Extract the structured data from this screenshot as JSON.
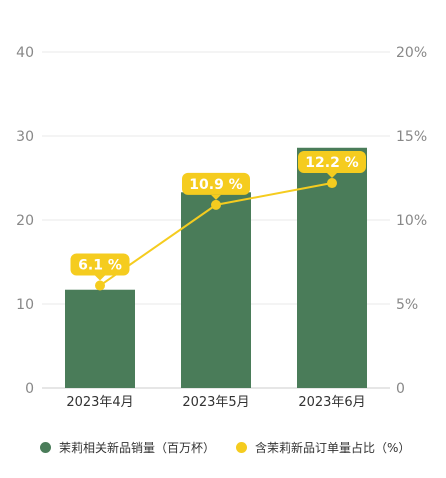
{
  "chart_data": {
    "type": "bar+line",
    "categories": [
      "2023年4月",
      "2023年5月",
      "2023年6月"
    ],
    "series": [
      {
        "name": "茉莉相关新品销量（百万杯）",
        "type": "bar",
        "axis": "left",
        "values": [
          11.7,
          23.3,
          28.6
        ],
        "color": "#4a7c59"
      },
      {
        "name": "含茉莉新品订单量占比（%）",
        "type": "line",
        "axis": "right",
        "values": [
          6.1,
          10.9,
          12.2
        ],
        "data_labels": [
          "6.1 %",
          "10.9 %",
          "12.2 %"
        ],
        "color": "#f5cc1f"
      }
    ],
    "left_axis": {
      "ticks": [
        "0",
        "10",
        "20",
        "30",
        "40"
      ],
      "range": [
        0,
        40
      ]
    },
    "right_axis": {
      "ticks": [
        "0",
        "5%",
        "10%",
        "15%",
        "20%"
      ],
      "range": [
        0,
        20
      ]
    },
    "grid": true,
    "legend_position": "bottom"
  }
}
